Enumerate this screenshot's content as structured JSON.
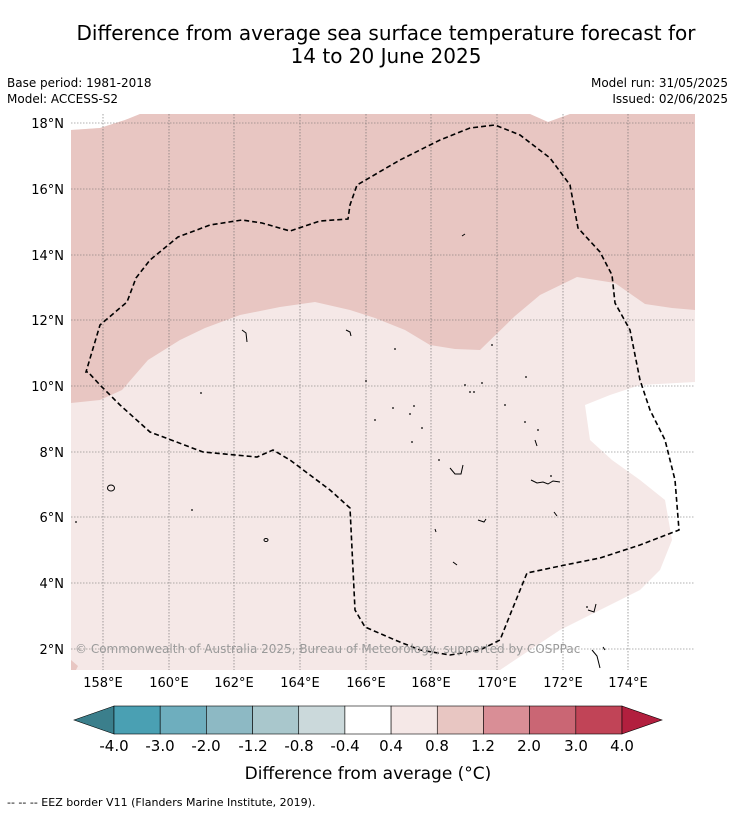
{
  "title_line1": "Difference from average sea surface temperature forecast for",
  "title_line2": "14 to 20 June 2025",
  "base_period": "Base period: 1981-2018",
  "model": "Model: ACCESS-S2",
  "model_run": "Model run: 31/05/2025",
  "issued": "Issued: 02/06/2025",
  "lat_labels": [
    "18°N",
    "16°N",
    "14°N",
    "12°N",
    "10°N",
    "8°N",
    "6°N",
    "4°N",
    "2°N"
  ],
  "lon_labels": [
    "158°E",
    "160°E",
    "162°E",
    "164°E",
    "166°E",
    "168°E",
    "170°E",
    "172°E",
    "174°E"
  ],
  "copyright": "© Commonwealth of Australia 2025, Bureau of Meteorology, supported by COSPPac",
  "colorbar": {
    "tick_labels": [
      "-4.0",
      "-3.0",
      "-2.0",
      "-1.2",
      "-0.8",
      "-0.4",
      "0.4",
      "0.8",
      "1.2",
      "2.0",
      "3.0",
      "4.0"
    ],
    "colors": [
      "#3b7f8c",
      "#4aa0b3",
      "#6eaebe",
      "#8db9c4",
      "#a9c7cc",
      "#cbd9db",
      "#ffffff",
      "#f5e8e7",
      "#e8c6c2",
      "#d98e96",
      "#ca6674",
      "#c14457",
      "#b21f3e"
    ],
    "label": "Difference from average (°C)"
  },
  "footnote": "--  --  -- EEZ border V11 (Flanders Marine Institute, 2019)."
}
